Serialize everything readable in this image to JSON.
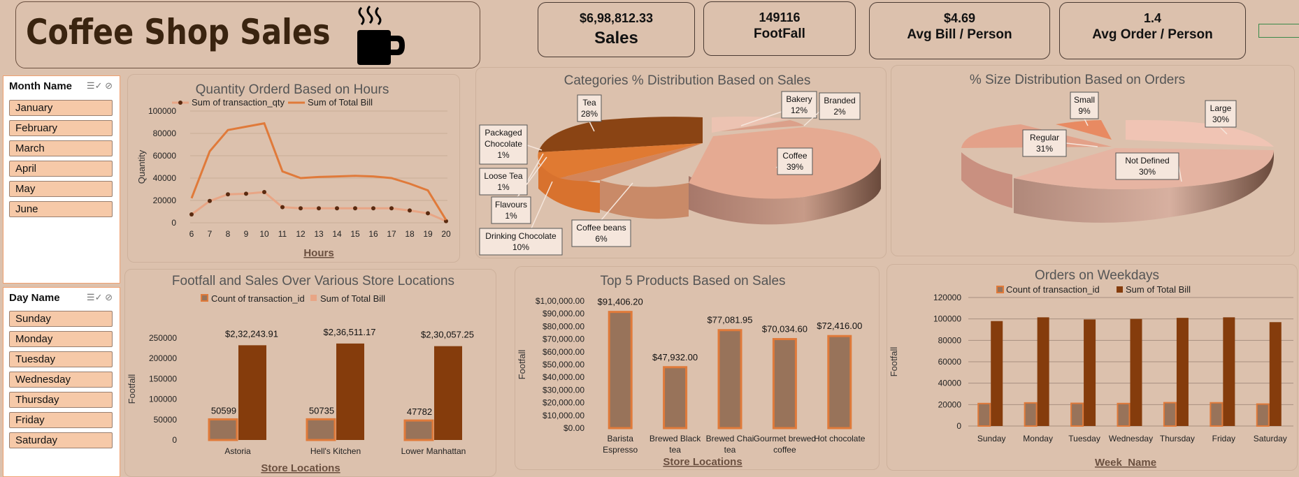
{
  "header": {
    "title": "Coffee Shop Sales"
  },
  "kpis": [
    {
      "value": "$6,98,812.33",
      "label": "Sales"
    },
    {
      "value": "149116",
      "label": "FootFall"
    },
    {
      "value": "$4.69",
      "label": "Avg Bill / Person"
    },
    {
      "value": "1.4",
      "label": "Avg Order / Person"
    }
  ],
  "slicers": {
    "month": {
      "title": "Month Name",
      "items": [
        "January",
        "February",
        "March",
        "April",
        "May",
        "June"
      ]
    },
    "day": {
      "title": "Day Name",
      "items": [
        "Sunday",
        "Monday",
        "Tuesday",
        "Wednesday",
        "Thursday",
        "Friday",
        "Saturday"
      ]
    }
  },
  "colors": {
    "light": "#e8a585",
    "orange": "#e07a3a",
    "dark": "#853c0c",
    "bar_gray": "#98735a",
    "bg": "#dcc1ad"
  },
  "chart_data": [
    {
      "id": "hours",
      "type": "line",
      "title": "Quantity Orderd Based on Hours",
      "xlabel": "Hours",
      "ylabel": "Quantity",
      "x": [
        6,
        7,
        8,
        9,
        10,
        11,
        12,
        13,
        14,
        15,
        16,
        17,
        18,
        19,
        20
      ],
      "ylim": [
        0,
        100000
      ],
      "yticks": [
        "0",
        "20000",
        "40000",
        "60000",
        "80000",
        "100000"
      ],
      "series": [
        {
          "name": "Sum of transaction_qty",
          "values": [
            7500,
            19500,
            25500,
            26000,
            27500,
            14000,
            13000,
            13000,
            13000,
            13000,
            13000,
            13000,
            11000,
            8500,
            1500
          ]
        },
        {
          "name": "Sum of Total Bill",
          "values": [
            22000,
            64000,
            83000,
            86000,
            89000,
            46000,
            40000,
            41000,
            41500,
            42000,
            41500,
            40000,
            35000,
            29000,
            2500
          ]
        }
      ]
    },
    {
      "id": "categories",
      "type": "pie",
      "title": "Categories % Distribution Based on Sales",
      "slices": [
        {
          "label": "Coffee",
          "value": "39%"
        },
        {
          "label": "Tea",
          "value": "28%"
        },
        {
          "label": "Bakery",
          "value": "12%"
        },
        {
          "label": "Drinking Chocolate",
          "value": "10%"
        },
        {
          "label": "Coffee beans",
          "value": "6%"
        },
        {
          "label": "Branded",
          "value": "2%"
        },
        {
          "label": "Packaged Chocolate",
          "value": "1%"
        },
        {
          "label": "Loose Tea",
          "value": "1%"
        },
        {
          "label": "Flavours",
          "value": "1%"
        }
      ]
    },
    {
      "id": "sizes",
      "type": "pie",
      "title": "% Size Distribution Based on Orders",
      "slices": [
        {
          "label": "Large",
          "value": "30%"
        },
        {
          "label": "Not Defined",
          "value": "30%"
        },
        {
          "label": "Regular",
          "value": "31%"
        },
        {
          "label": "Small",
          "value": "9%"
        }
      ]
    },
    {
      "id": "stores",
      "type": "bar",
      "title": "Footfall and Sales Over Various Store Locations",
      "xlabel": "Store Locations",
      "ylabel": "Footfall",
      "categories": [
        "Astoria",
        "Hell's Kitchen",
        "Lower Manhattan"
      ],
      "ylim": [
        0,
        250000
      ],
      "yticks": [
        "0",
        "50000",
        "100000",
        "150000",
        "200000",
        "250000"
      ],
      "series": [
        {
          "name": "Count of transaction_id",
          "values": [
            50599,
            50735,
            47782
          ],
          "labels": [
            "50599",
            "50735",
            "47782"
          ]
        },
        {
          "name": "Sum of Total Bill",
          "values": [
            232243.91,
            236511.17,
            230057.25
          ],
          "labels": [
            "$2,32,243.91",
            "$2,36,511.17",
            "$2,30,057.25"
          ]
        }
      ]
    },
    {
      "id": "products",
      "type": "bar",
      "title": "Top 5 Products Based on Sales",
      "xlabel": "Store Locations",
      "ylabel": "Footfall",
      "categories": [
        "Barista Espresso",
        "Brewed Black tea",
        "Brewed Chai tea",
        "Gourmet brewed coffee",
        "Hot chocolate"
      ],
      "ylim": [
        0,
        100000
      ],
      "yticks": [
        "$0.00",
        "$10,000.00",
        "$20,000.00",
        "$30,000.00",
        "$40,000.00",
        "$50,000.00",
        "$60,000.00",
        "$70,000.00",
        "$80,000.00",
        "$90,000.00",
        "$1,00,000.00"
      ],
      "values": [
        91406.2,
        47932.0,
        77081.95,
        70034.6,
        72416.0
      ],
      "labels": [
        "$91,406.20",
        "$47,932.00",
        "$77,081.95",
        "$70,034.60",
        "$72,416.00"
      ]
    },
    {
      "id": "weekdays",
      "type": "bar",
      "title": "Orders on Weekdays",
      "xlabel": "Week_Name",
      "ylabel": "Footfall",
      "categories": [
        "Sunday",
        "Monday",
        "Tuesday",
        "Wednesday",
        "Thursday",
        "Friday",
        "Saturday"
      ],
      "ylim": [
        0,
        120000
      ],
      "yticks": [
        "0",
        "20000",
        "40000",
        "60000",
        "80000",
        "100000",
        "120000"
      ],
      "series": [
        {
          "name": "Count of transaction_id",
          "values": [
            21000,
            21600,
            21200,
            21000,
            21800,
            21700,
            20500
          ]
        },
        {
          "name": "Sum of Total Bill",
          "values": [
            98000,
            101500,
            99500,
            100000,
            101000,
            101500,
            97000
          ]
        }
      ]
    }
  ]
}
